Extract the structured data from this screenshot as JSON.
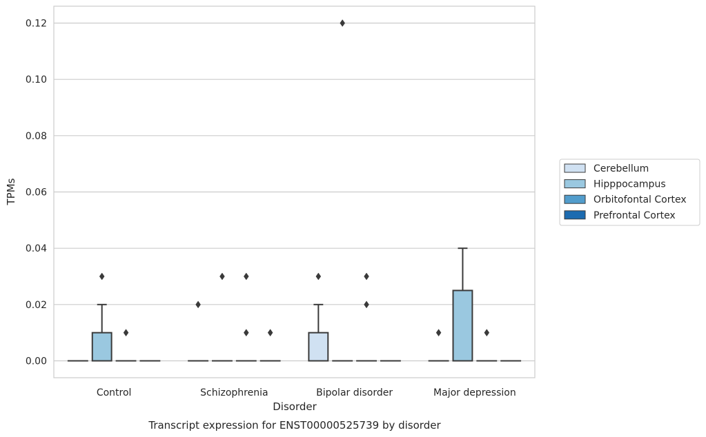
{
  "chart_data": {
    "type": "box",
    "title": "Transcript expression for ENST00000525739 by disorder",
    "xlabel": "Disorder",
    "ylabel": "TPMs",
    "ylim": [
      -0.006,
      0.126
    ],
    "yticks": [
      "0.00",
      "0.02",
      "0.04",
      "0.06",
      "0.08",
      "0.10",
      "0.12"
    ],
    "ytick_values": [
      0.0,
      0.02,
      0.04,
      0.06,
      0.08,
      0.1,
      0.12
    ],
    "grid": "horizontal",
    "legend_position": "right",
    "categories": [
      "Control",
      "Schizophrenia",
      "Bipolar disorder",
      "Major depression"
    ],
    "series": [
      {
        "name": "Cerebellum",
        "color": "#d0e1f2",
        "boxes": [
          {
            "q1": 0,
            "median": 0,
            "q3": 0,
            "whisker_low": 0,
            "whisker_high": 0,
            "outliers": []
          },
          {
            "q1": 0,
            "median": 0,
            "q3": 0,
            "whisker_low": 0,
            "whisker_high": 0,
            "outliers": [
              0.02
            ]
          },
          {
            "q1": 0,
            "median": 0,
            "q3": 0.01,
            "whisker_low": 0,
            "whisker_high": 0.02,
            "outliers": [
              0.03
            ]
          },
          {
            "q1": 0,
            "median": 0,
            "q3": 0,
            "whisker_low": 0,
            "whisker_high": 0,
            "outliers": [
              0.01
            ]
          }
        ]
      },
      {
        "name": "Hipppocampus",
        "color": "#9ac8e0",
        "boxes": [
          {
            "q1": 0,
            "median": 0,
            "q3": 0.01,
            "whisker_low": 0,
            "whisker_high": 0.02,
            "outliers": [
              0.03
            ]
          },
          {
            "q1": 0,
            "median": 0,
            "q3": 0,
            "whisker_low": 0,
            "whisker_high": 0,
            "outliers": [
              0.03
            ]
          },
          {
            "q1": 0,
            "median": 0,
            "q3": 0,
            "whisker_low": 0,
            "whisker_high": 0,
            "outliers": [
              0.12
            ]
          },
          {
            "q1": 0,
            "median": 0,
            "q3": 0.025,
            "whisker_low": 0,
            "whisker_high": 0.04,
            "outliers": []
          }
        ]
      },
      {
        "name": "Orbitofontal Cortex",
        "color": "#529dcc",
        "boxes": [
          {
            "q1": 0,
            "median": 0,
            "q3": 0,
            "whisker_low": 0,
            "whisker_high": 0,
            "outliers": [
              0.01
            ]
          },
          {
            "q1": 0,
            "median": 0,
            "q3": 0,
            "whisker_low": 0,
            "whisker_high": 0,
            "outliers": [
              0.03,
              0.01
            ]
          },
          {
            "q1": 0,
            "median": 0,
            "q3": 0,
            "whisker_low": 0,
            "whisker_high": 0,
            "outliers": [
              0.03,
              0.02
            ]
          },
          {
            "q1": 0,
            "median": 0,
            "q3": 0,
            "whisker_low": 0,
            "whisker_high": 0,
            "outliers": [
              0.01
            ]
          }
        ]
      },
      {
        "name": "Prefrontal Cortex",
        "color": "#1c6bb0",
        "boxes": [
          {
            "q1": 0,
            "median": 0,
            "q3": 0,
            "whisker_low": 0,
            "whisker_high": 0,
            "outliers": []
          },
          {
            "q1": 0,
            "median": 0,
            "q3": 0,
            "whisker_low": 0,
            "whisker_high": 0,
            "outliers": [
              0.01
            ]
          },
          {
            "q1": 0,
            "median": 0,
            "q3": 0,
            "whisker_low": 0,
            "whisker_high": 0,
            "outliers": []
          },
          {
            "q1": 0,
            "median": 0,
            "q3": 0,
            "whisker_low": 0,
            "whisker_high": 0,
            "outliers": []
          }
        ]
      }
    ]
  }
}
